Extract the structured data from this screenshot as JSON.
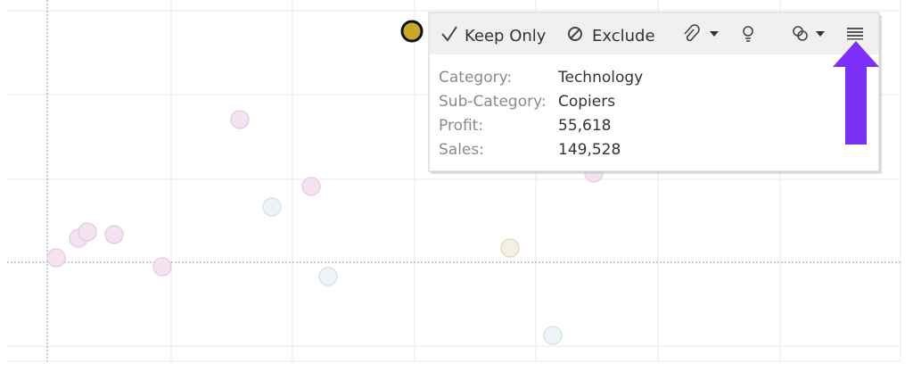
{
  "toolbar": {
    "keep_only": "Keep Only",
    "exclude": "Exclude"
  },
  "tooltip": {
    "rows": [
      [
        "Category:",
        "Technology"
      ],
      [
        "Sub-Category:",
        "Copiers"
      ],
      [
        "Profit:",
        "55,618"
      ],
      [
        "Sales:",
        "149,528"
      ]
    ]
  }
}
